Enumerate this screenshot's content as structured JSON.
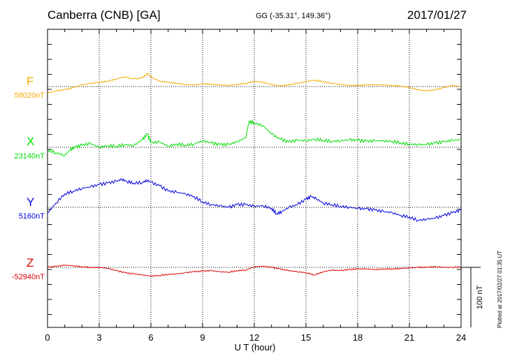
{
  "header": {
    "station": "Canberra (CNB)  [GA]",
    "coords": "GG (-35.31°, 149.36°)",
    "date": "2017/01/27"
  },
  "footer": {
    "plotted": "Plotted at 2017/02/27 01:35 UT",
    "scale_label": "100 nT"
  },
  "chart_data": {
    "type": "line",
    "title": "Canberra (CNB)  [GA]",
    "xlabel": "U T (hour)",
    "ylabel": "",
    "xlim": [
      0,
      24
    ],
    "x_ticks": [
      0,
      3,
      6,
      9,
      12,
      15,
      18,
      21,
      24
    ],
    "grid": true,
    "scale_bar_nT": 100,
    "series": [
      {
        "name": "F",
        "baseline_label": "58020nT",
        "color": "#f5a800",
        "x": [
          0,
          0.5,
          1,
          1.5,
          2,
          2.5,
          3,
          3.5,
          4,
          4.5,
          5,
          5.5,
          5.8,
          6,
          6.5,
          7,
          7.5,
          8,
          8.5,
          9,
          9.5,
          10,
          10.5,
          11,
          11.5,
          12,
          12.5,
          13,
          13.5,
          14,
          14.5,
          15,
          15.5,
          16,
          16.5,
          17,
          17.5,
          18,
          18.5,
          19,
          19.5,
          20,
          20.5,
          21,
          21.5,
          22,
          22.5,
          23,
          23.5,
          24
        ],
        "values": [
          -12,
          -8,
          -6,
          -2,
          3,
          6,
          8,
          10,
          14,
          18,
          14,
          16,
          24,
          18,
          10,
          8,
          6,
          4,
          3,
          5,
          4,
          3,
          2,
          4,
          6,
          10,
          8,
          4,
          1,
          3,
          6,
          9,
          12,
          9,
          6,
          4,
          2,
          2,
          3,
          3,
          3,
          2,
          1,
          -2,
          -6,
          -8,
          -6,
          -2,
          2,
          0
        ]
      },
      {
        "name": "X",
        "baseline_label": "23140nT",
        "color": "#00dd00",
        "x": [
          0,
          0.5,
          1,
          1.3,
          1.6,
          2,
          2.5,
          3,
          3.5,
          4,
          4.5,
          5,
          5.5,
          5.8,
          6,
          6.5,
          7,
          7.5,
          8,
          8.5,
          9,
          9.5,
          10,
          10.5,
          11,
          11.5,
          11.7,
          12,
          12.5,
          13,
          13.5,
          14,
          14.5,
          15,
          15.5,
          16,
          16.5,
          17,
          17.5,
          18,
          18.5,
          19,
          19.5,
          20,
          20.5,
          21,
          21.5,
          22,
          22.5,
          23,
          23.5,
          24
        ],
        "values": [
          -5,
          -10,
          -15,
          -5,
          0,
          4,
          7,
          0,
          3,
          2,
          5,
          3,
          14,
          25,
          8,
          10,
          2,
          6,
          4,
          6,
          12,
          8,
          5,
          5,
          10,
          18,
          48,
          45,
          40,
          25,
          15,
          10,
          13,
          12,
          15,
          13,
          11,
          12,
          14,
          13,
          11,
          12,
          12,
          11,
          8,
          6,
          5,
          5,
          8,
          10,
          13,
          14
        ]
      },
      {
        "name": "Y",
        "baseline_label": "5160nT",
        "color": "#0000dd",
        "x": [
          0,
          0.5,
          1,
          1.5,
          2,
          2.5,
          3,
          3.5,
          4,
          4.3,
          4.6,
          5,
          5.5,
          5.8,
          6,
          6.5,
          7,
          7.5,
          8,
          8.5,
          9,
          9.5,
          10,
          10.5,
          11,
          11.5,
          12,
          12.5,
          13,
          13.3,
          13.6,
          14,
          14.5,
          15,
          15.3,
          15.6,
          16,
          16.5,
          17,
          17.5,
          18,
          18.5,
          19,
          19.5,
          20,
          20.5,
          21,
          21.5,
          22,
          22.5,
          23,
          23.5,
          24
        ],
        "values": [
          -10,
          8,
          25,
          30,
          35,
          38,
          42,
          45,
          48,
          52,
          48,
          45,
          46,
          50,
          46,
          40,
          30,
          28,
          25,
          20,
          10,
          5,
          3,
          0,
          5,
          5,
          2,
          3,
          -2,
          -12,
          -8,
          0,
          5,
          15,
          20,
          16,
          8,
          5,
          2,
          0,
          -2,
          -3,
          -5,
          -8,
          -10,
          -15,
          -18,
          -24,
          -22,
          -20,
          -15,
          -10,
          -5
        ]
      },
      {
        "name": "Z",
        "baseline_label": "-52940nT",
        "color": "#dd0000",
        "x": [
          0,
          0.5,
          1,
          1.5,
          2,
          2.5,
          3,
          3.5,
          4,
          4.5,
          5,
          5.5,
          6,
          6.5,
          7,
          7.5,
          8,
          8.5,
          9,
          9.5,
          10,
          10.5,
          11,
          11.5,
          12,
          12.5,
          13,
          13.5,
          14,
          14.5,
          15,
          15.5,
          16,
          16.5,
          17,
          17.5,
          18,
          18.5,
          19,
          19.5,
          20,
          20.5,
          21,
          21.5,
          22,
          22.5,
          23,
          23.5,
          24
        ],
        "values": [
          0,
          2,
          4,
          3,
          1,
          0,
          0,
          -2,
          -6,
          -10,
          -12,
          -14,
          -16,
          -15,
          -13,
          -12,
          -10,
          -8,
          -7,
          -6,
          -8,
          -9,
          -6,
          -5,
          1,
          2,
          0,
          -3,
          -6,
          -8,
          -10,
          -14,
          -8,
          -5,
          -6,
          -4,
          -3,
          -3,
          -4,
          -3,
          -3,
          -2,
          -1,
          0,
          0,
          1,
          0,
          0,
          1
        ]
      }
    ]
  }
}
